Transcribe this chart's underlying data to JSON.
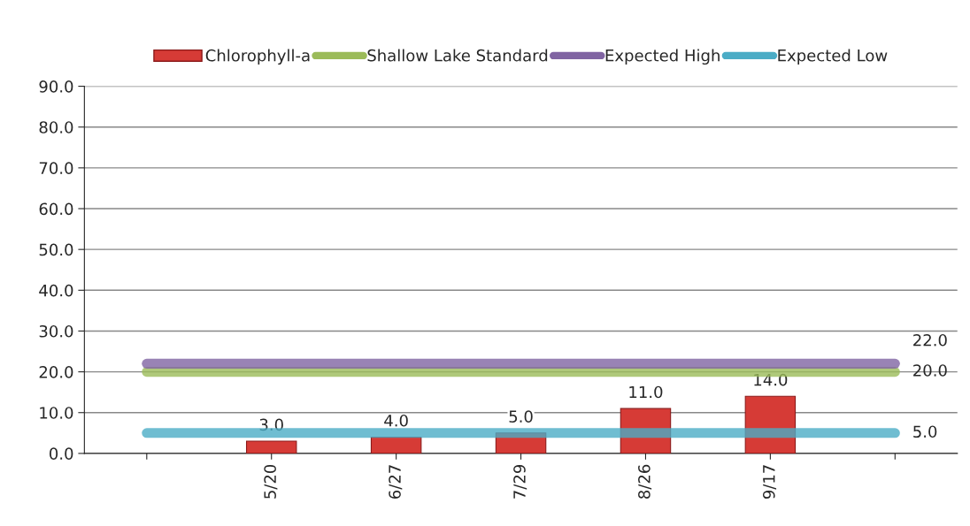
{
  "chart_data": {
    "type": "bar",
    "categories": [
      null,
      "5/20",
      "6/27",
      "7/29",
      "8/26",
      "9/17",
      null
    ],
    "series": [
      {
        "name": "Chlorophyll-a",
        "color": "#d63b36",
        "values": [
          null,
          3.0,
          4.0,
          5.0,
          11.0,
          14.0,
          null
        ],
        "value_labels": [
          null,
          "3.0",
          "4.0",
          "5.0",
          "11.0",
          "14.0",
          null
        ]
      },
      {
        "name": "Shallow Lake Standard",
        "type": "line",
        "color": "#9bbb59",
        "values": [
          20,
          20,
          20,
          20,
          20,
          20,
          20
        ],
        "value_labels": [
          null,
          null,
          null,
          null,
          null,
          null,
          "20.0"
        ]
      },
      {
        "name": "Expected High",
        "type": "line",
        "color": "#8064a2",
        "values": [
          22,
          22,
          22,
          22,
          22,
          22,
          22
        ],
        "value_labels": [
          null,
          null,
          null,
          null,
          null,
          null,
          "22.0"
        ]
      },
      {
        "name": "Expected Low",
        "type": "line",
        "color": "#4bacc6",
        "values": [
          5,
          5,
          5,
          5,
          5,
          5,
          5
        ],
        "value_labels": [
          null,
          null,
          null,
          null,
          null,
          null,
          "5.0"
        ]
      }
    ],
    "ylim": [
      0,
      90
    ],
    "yticks": [
      {
        "value": 0,
        "label": "0.0"
      },
      {
        "value": 10,
        "label": "10.0"
      },
      {
        "value": 20,
        "label": "20.0"
      },
      {
        "value": 30,
        "label": "30.0"
      },
      {
        "value": 40,
        "label": "40.0"
      },
      {
        "value": 50,
        "label": "50.0"
      },
      {
        "value": 60,
        "label": "60.0"
      },
      {
        "value": 70,
        "label": "70.0"
      },
      {
        "value": 80,
        "label": "80.0"
      },
      {
        "value": 90,
        "label": "90.0"
      }
    ],
    "grid": "y",
    "legend": "top"
  }
}
